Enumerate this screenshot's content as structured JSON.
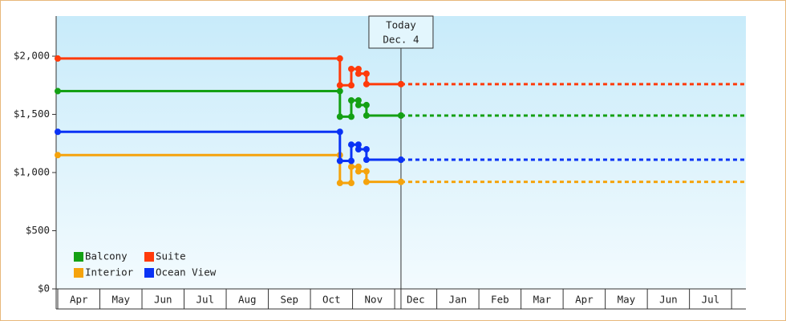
{
  "chart_data": {
    "type": "step-line",
    "categories": [
      "Apr",
      "May",
      "Jun",
      "Jul",
      "Aug",
      "Sep",
      "Oct",
      "Nov",
      "Dec",
      "Jan",
      "Feb",
      "Mar",
      "Apr",
      "May",
      "Jun",
      "Jul"
    ],
    "x": [
      0,
      6.7,
      6.97,
      7.14,
      7.33,
      8.15
    ],
    "xlim": [
      0,
      16.34
    ],
    "series": [
      {
        "name": "Balcony",
        "color": "#14a014",
        "values": [
          1700,
          1480,
          1620,
          1580,
          1490,
          1490
        ]
      },
      {
        "name": "Suite",
        "color": "#ff3a0a",
        "values": [
          1980,
          1750,
          1890,
          1850,
          1760,
          1760
        ]
      },
      {
        "name": "Interior",
        "color": "#f5a30c",
        "values": [
          1150,
          910,
          1050,
          1010,
          920,
          920
        ]
      },
      {
        "name": "Ocean View",
        "color": "#0a32f5",
        "values": [
          1350,
          1100,
          1240,
          1200,
          1110,
          1110
        ]
      }
    ],
    "ylim": [
      0,
      2345
    ],
    "yticks": [
      {
        "value": 0,
        "label": "$0"
      },
      {
        "value": 500,
        "label": "$500"
      },
      {
        "value": 1000,
        "label": "$1,000"
      },
      {
        "value": 1500,
        "label": "$1,500"
      },
      {
        "value": 2000,
        "label": "$2,000"
      }
    ],
    "annotation": {
      "x": 8.15,
      "lines": [
        "Today",
        "Dec. 4"
      ]
    }
  }
}
